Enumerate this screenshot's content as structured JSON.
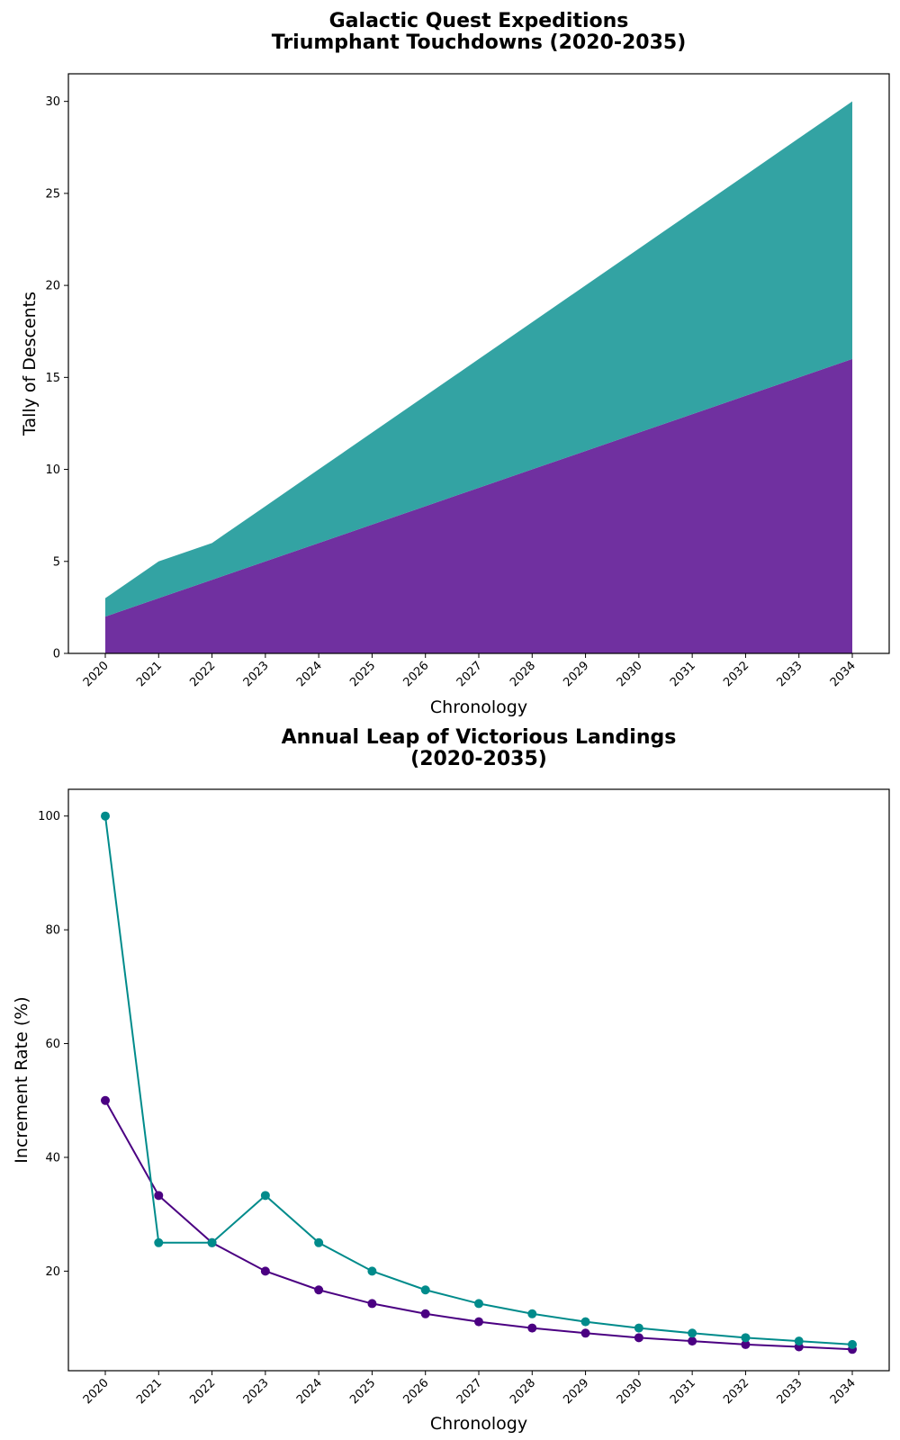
{
  "chart_data": [
    {
      "type": "area",
      "stacked": true,
      "title_lines": [
        "Galactic Quest Expeditions",
        "Triumphant Touchdowns (2020-2035)"
      ],
      "xlabel": "Chronology",
      "ylabel": "Tally of Descents",
      "categories": [
        "2020",
        "2021",
        "2022",
        "2023",
        "2024",
        "2025",
        "2026",
        "2027",
        "2028",
        "2029",
        "2030",
        "2031",
        "2032",
        "2033",
        "2034"
      ],
      "series": [
        {
          "color": "#7030a0",
          "values": [
            2,
            3,
            4,
            5,
            6,
            7,
            8,
            9,
            10,
            11,
            12,
            13,
            14,
            15,
            16
          ]
        },
        {
          "color": "#33a3a3",
          "values": [
            1,
            2,
            2,
            3,
            4,
            5,
            6,
            7,
            8,
            9,
            10,
            11,
            12,
            13,
            14
          ]
        }
      ],
      "ylim": [
        0,
        31.5
      ],
      "yticks": [
        0,
        5,
        10,
        15,
        20,
        25,
        30
      ],
      "grid": false,
      "legend": "none"
    },
    {
      "type": "line",
      "title_lines": [
        "Annual Leap of Victorious Landings",
        "(2020-2035)"
      ],
      "xlabel": "Chronology",
      "ylabel": "Increment Rate (%)",
      "categories": [
        "2020",
        "2021",
        "2022",
        "2023",
        "2024",
        "2025",
        "2026",
        "2027",
        "2028",
        "2029",
        "2030",
        "2031",
        "2032",
        "2033",
        "2034"
      ],
      "series": [
        {
          "color": "#4b0082",
          "values": [
            50,
            33.3,
            25,
            20,
            16.7,
            14.3,
            12.5,
            11.1,
            10,
            9.1,
            8.3,
            7.7,
            7.1,
            6.7,
            6.25
          ]
        },
        {
          "color": "#008b8b",
          "values": [
            100,
            25,
            25,
            33.3,
            25,
            20,
            16.7,
            14.3,
            12.5,
            11.1,
            10,
            9.1,
            8.3,
            7.7,
            7.1
          ]
        }
      ],
      "ylim": [
        2.5,
        104.7
      ],
      "yticks": [
        20,
        40,
        60,
        80,
        100
      ],
      "grid": false,
      "legend": "none"
    }
  ]
}
